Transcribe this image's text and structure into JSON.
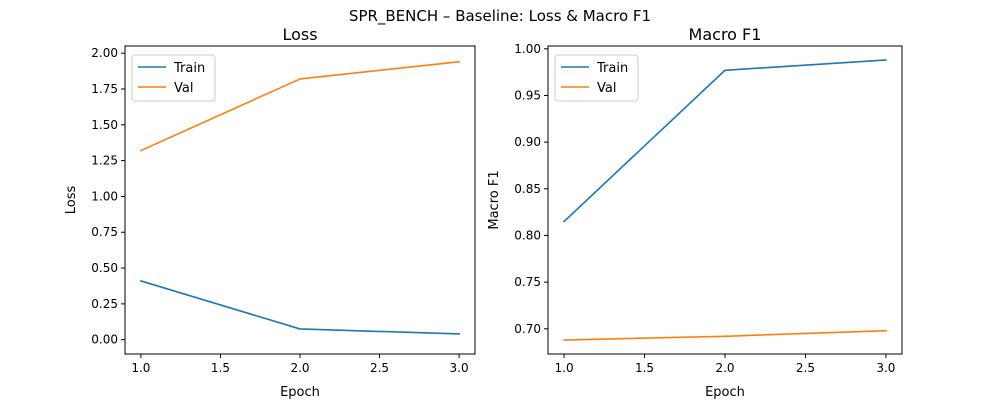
{
  "figure": {
    "suptitle": "SPR_BENCH – Baseline: Loss & Macro F1",
    "colors": {
      "train": "#1f77b4",
      "val": "#ff7f0e"
    }
  },
  "chart_data": [
    {
      "type": "line",
      "title": "Loss",
      "xlabel": "Epoch",
      "ylabel": "Loss",
      "xlim": [
        0.9,
        3.1
      ],
      "ylim": [
        -0.1,
        2.05
      ],
      "xticks": [
        1.0,
        1.5,
        2.0,
        2.5,
        3.0
      ],
      "xtick_labels": [
        "1.0",
        "1.5",
        "2.0",
        "2.5",
        "3.0"
      ],
      "yticks": [
        0.0,
        0.25,
        0.5,
        0.75,
        1.0,
        1.25,
        1.5,
        1.75,
        2.0
      ],
      "ytick_labels": [
        "0.00",
        "0.25",
        "0.50",
        "0.75",
        "1.00",
        "1.25",
        "1.50",
        "1.75",
        "2.00"
      ],
      "grid": false,
      "legend": "upper left",
      "x": [
        1,
        2,
        3
      ],
      "series": [
        {
          "name": "Train",
          "values": [
            0.41,
            0.075,
            0.04
          ],
          "color": "#1f77b4"
        },
        {
          "name": "Val",
          "values": [
            1.32,
            1.82,
            1.94
          ],
          "color": "#ff7f0e"
        }
      ]
    },
    {
      "type": "line",
      "title": "Macro F1",
      "xlabel": "Epoch",
      "ylabel": "Macro F1",
      "xlim": [
        0.9,
        3.1
      ],
      "ylim": [
        0.673,
        1.003
      ],
      "xticks": [
        1.0,
        1.5,
        2.0,
        2.5,
        3.0
      ],
      "xtick_labels": [
        "1.0",
        "1.5",
        "2.0",
        "2.5",
        "3.0"
      ],
      "yticks": [
        0.7,
        0.75,
        0.8,
        0.85,
        0.9,
        0.95,
        1.0
      ],
      "ytick_labels": [
        "0.70",
        "0.75",
        "0.80",
        "0.85",
        "0.90",
        "0.95",
        "1.00"
      ],
      "grid": false,
      "legend": "upper left",
      "x": [
        1,
        2,
        3
      ],
      "series": [
        {
          "name": "Train",
          "values": [
            0.815,
            0.977,
            0.988
          ],
          "color": "#1f77b4"
        },
        {
          "name": "Val",
          "values": [
            0.688,
            0.692,
            0.698
          ],
          "color": "#ff7f0e"
        }
      ]
    }
  ]
}
